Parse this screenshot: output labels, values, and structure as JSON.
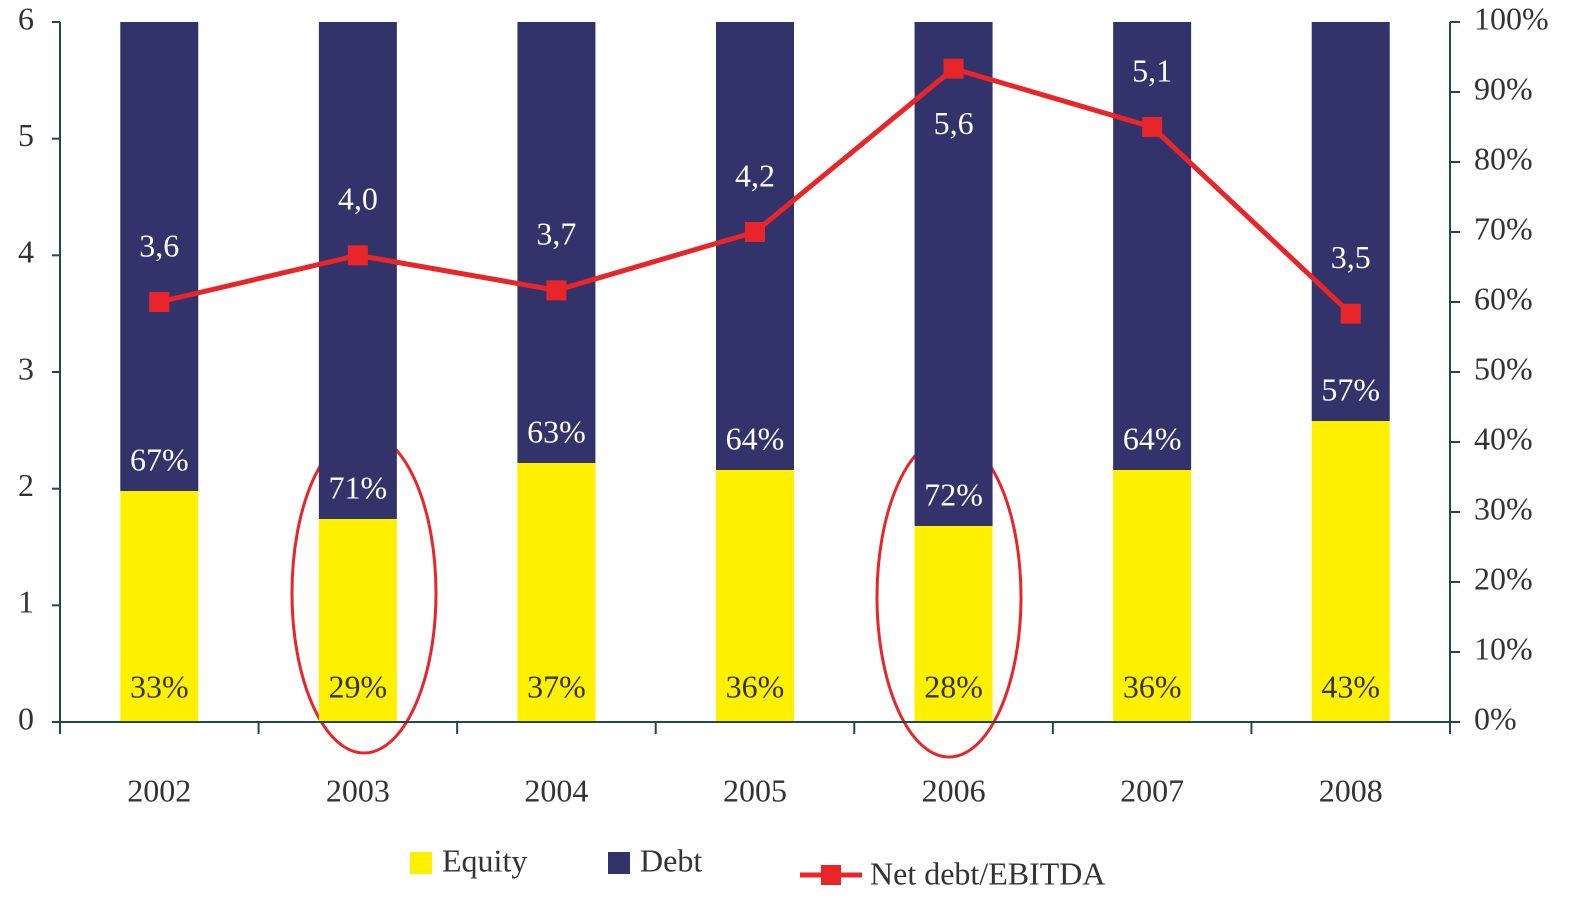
{
  "chart_data": {
    "type": "bar",
    "categories": [
      "2002",
      "2003",
      "2004",
      "2005",
      "2006",
      "2007",
      "2008"
    ],
    "series": [
      {
        "name": "Equity",
        "type": "bar",
        "axis": "y2",
        "color": "#fff000",
        "values": [
          33,
          29,
          37,
          36,
          28,
          36,
          43
        ],
        "value_labels": [
          "33%",
          "29%",
          "37%",
          "36%",
          "28%",
          "36%",
          "43%"
        ]
      },
      {
        "name": "Debt",
        "type": "bar",
        "axis": "y2",
        "color": "#33336b",
        "values": [
          67,
          71,
          63,
          64,
          72,
          64,
          57
        ],
        "value_labels": [
          "67%",
          "71%",
          "63%",
          "64%",
          "72%",
          "64%",
          "57%"
        ]
      },
      {
        "name": "Net debt/EBITDA",
        "type": "line",
        "axis": "y",
        "color": "#e8262a",
        "values": [
          3.6,
          4.0,
          3.7,
          4.2,
          5.6,
          5.1,
          3.5
        ],
        "value_labels": [
          "3,6",
          "4,0",
          "3,7",
          "4,2",
          "5,6",
          "5,1",
          "3,5"
        ]
      }
    ],
    "ylim": [
      0,
      6
    ],
    "yticks": [
      0,
      1,
      2,
      3,
      4,
      5,
      6
    ],
    "y2lim": [
      0,
      100
    ],
    "y2ticks": [
      {
        "value": 0,
        "label": "0%"
      },
      {
        "value": 10,
        "label": "10%"
      },
      {
        "value": 20,
        "label": "20%"
      },
      {
        "value": 30,
        "label": "30%"
      },
      {
        "value": 40,
        "label": "40%"
      },
      {
        "value": 50,
        "label": "50%"
      },
      {
        "value": 60,
        "label": "60%"
      },
      {
        "value": 70,
        "label": "70%"
      },
      {
        "value": 80,
        "label": "80%"
      },
      {
        "value": 90,
        "label": "90%"
      },
      {
        "value": 100,
        "label": "100%"
      }
    ],
    "stacked": true,
    "legend": "bottom"
  }
}
